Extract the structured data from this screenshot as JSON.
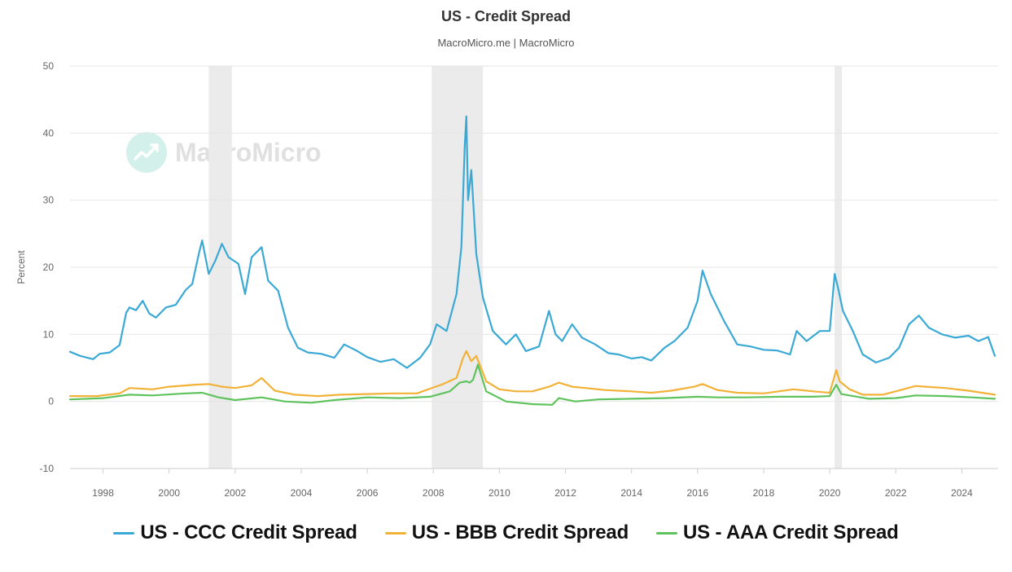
{
  "title": "US - Credit Spread",
  "subtitle": "MacroMicro.me | MacroMicro",
  "watermark": "MacroMicro",
  "colors": {
    "ccc": "#3aa9d5",
    "bbb": "#f2b137",
    "aaa": "#5ec35c",
    "recession": "#ebebeb",
    "grid": "#e6e6e6"
  },
  "chart_data": {
    "type": "line",
    "title": "US - Credit Spread",
    "subtitle": "MacroMicro.me | MacroMicro",
    "ylabel": "Percent",
    "ylim": [
      -10,
      50
    ],
    "xlim": [
      1997.0,
      2025.1
    ],
    "yticks": [
      -10,
      0,
      10,
      20,
      30,
      40,
      50
    ],
    "xticks": [
      1998,
      2000,
      2002,
      2004,
      2006,
      2008,
      2010,
      2012,
      2014,
      2016,
      2018,
      2020,
      2022,
      2024
    ],
    "grid": true,
    "legend_position": "bottom",
    "recessions": [
      [
        2001.2,
        2001.9
      ],
      [
        2007.95,
        2009.5
      ],
      [
        2020.15,
        2020.37
      ]
    ],
    "series": [
      {
        "name": "US - CCC Credit Spread",
        "x": [
          1997.0,
          1997.3,
          1997.7,
          1997.9,
          1998.2,
          1998.5,
          1998.7,
          1998.8,
          1999.0,
          1999.2,
          1999.4,
          1999.6,
          1999.9,
          2000.2,
          2000.5,
          2000.7,
          2000.9,
          2001.0,
          2001.2,
          2001.4,
          2001.6,
          2001.8,
          2002.1,
          2002.3,
          2002.5,
          2002.8,
          2003.0,
          2003.3,
          2003.6,
          2003.9,
          2004.2,
          2004.6,
          2005.0,
          2005.3,
          2005.7,
          2006.0,
          2006.4,
          2006.8,
          2007.2,
          2007.6,
          2007.9,
          2008.1,
          2008.4,
          2008.7,
          2008.85,
          2008.95,
          2009.0,
          2009.05,
          2009.15,
          2009.3,
          2009.5,
          2009.8,
          2010.2,
          2010.5,
          2010.8,
          2011.2,
          2011.5,
          2011.7,
          2011.9,
          2012.2,
          2012.5,
          2012.9,
          2013.3,
          2013.6,
          2014.0,
          2014.3,
          2014.6,
          2015.0,
          2015.3,
          2015.7,
          2016.0,
          2016.15,
          2016.4,
          2016.8,
          2017.2,
          2017.6,
          2018.0,
          2018.4,
          2018.8,
          2019.0,
          2019.3,
          2019.7,
          2020.0,
          2020.15,
          2020.25,
          2020.4,
          2020.7,
          2021.0,
          2021.4,
          2021.8,
          2022.1,
          2022.4,
          2022.7,
          2023.0,
          2023.4,
          2023.8,
          2024.2,
          2024.5,
          2024.8,
          2025.0
        ],
        "values": [
          7.4,
          6.8,
          6.3,
          7.1,
          7.3,
          8.4,
          13.2,
          14.0,
          13.6,
          15.0,
          13.1,
          12.5,
          14.0,
          14.4,
          16.6,
          17.5,
          22.0,
          24.0,
          19.0,
          21.0,
          23.5,
          21.5,
          20.5,
          16.0,
          21.5,
          23.0,
          18.0,
          16.5,
          11.0,
          8.0,
          7.3,
          7.1,
          6.5,
          8.5,
          7.5,
          6.6,
          5.9,
          6.3,
          5.0,
          6.5,
          8.5,
          11.5,
          10.5,
          16.0,
          23.0,
          38.0,
          42.5,
          30.0,
          34.5,
          22.0,
          15.5,
          10.5,
          8.5,
          10.0,
          7.5,
          8.2,
          13.5,
          10.0,
          9.0,
          11.5,
          9.5,
          8.5,
          7.2,
          7.0,
          6.4,
          6.6,
          6.1,
          8.0,
          9.0,
          11.0,
          15.0,
          19.5,
          16.0,
          12.0,
          8.5,
          8.2,
          7.7,
          7.6,
          7.0,
          10.5,
          9.0,
          10.5,
          10.5,
          19.0,
          17.0,
          13.5,
          10.5,
          7.0,
          5.8,
          6.5,
          8.0,
          11.5,
          12.8,
          11.0,
          10.0,
          9.5,
          9.8,
          9.0,
          9.6,
          6.8
        ]
      },
      {
        "name": "US - BBB Credit Spread",
        "x": [
          1997.0,
          1997.8,
          1998.5,
          1998.8,
          1999.5,
          2000.0,
          2000.8,
          2001.2,
          2001.6,
          2002.0,
          2002.5,
          2002.8,
          2003.2,
          2003.8,
          2004.5,
          2005.2,
          2006.0,
          2006.8,
          2007.5,
          2007.9,
          2008.3,
          2008.7,
          2008.9,
          2009.0,
          2009.15,
          2009.3,
          2009.6,
          2010.0,
          2010.5,
          2011.0,
          2011.5,
          2011.8,
          2012.2,
          2012.6,
          2013.2,
          2014.0,
          2014.6,
          2015.2,
          2015.9,
          2016.15,
          2016.6,
          2017.2,
          2018.0,
          2018.9,
          2019.5,
          2020.0,
          2020.2,
          2020.3,
          2020.6,
          2021.0,
          2021.6,
          2022.0,
          2022.6,
          2022.9,
          2023.5,
          2024.2,
          2025.0
        ],
        "values": [
          0.8,
          0.8,
          1.2,
          2.0,
          1.8,
          2.2,
          2.5,
          2.6,
          2.2,
          2.0,
          2.4,
          3.5,
          1.6,
          1.0,
          0.8,
          1.0,
          1.1,
          1.2,
          1.2,
          1.9,
          2.6,
          3.5,
          6.5,
          7.5,
          6.0,
          6.8,
          3.0,
          1.8,
          1.5,
          1.5,
          2.2,
          2.8,
          2.2,
          2.0,
          1.7,
          1.5,
          1.3,
          1.6,
          2.2,
          2.6,
          1.7,
          1.3,
          1.2,
          1.8,
          1.5,
          1.3,
          4.7,
          3.0,
          1.8,
          1.0,
          1.0,
          1.5,
          2.3,
          2.2,
          2.0,
          1.6,
          1.0
        ]
      },
      {
        "name": "US - AAA Credit Spread",
        "x": [
          1997.0,
          1998.0,
          1998.8,
          1999.5,
          2000.5,
          2001.0,
          2001.5,
          2002.0,
          2002.8,
          2003.5,
          2004.3,
          2005.0,
          2006.0,
          2007.0,
          2007.9,
          2008.5,
          2008.8,
          2009.0,
          2009.1,
          2009.2,
          2009.35,
          2009.6,
          2010.2,
          2011.0,
          2011.6,
          2011.8,
          2012.3,
          2013.0,
          2014.0,
          2015.0,
          2016.0,
          2016.6,
          2017.5,
          2018.5,
          2019.5,
          2020.0,
          2020.2,
          2020.35,
          2020.7,
          2021.2,
          2022.0,
          2022.6,
          2023.5,
          2024.3,
          2025.0
        ],
        "values": [
          0.3,
          0.5,
          1.0,
          0.9,
          1.2,
          1.3,
          0.6,
          0.2,
          0.6,
          0.0,
          -0.2,
          0.2,
          0.6,
          0.5,
          0.7,
          1.5,
          2.8,
          3.0,
          2.8,
          3.2,
          5.5,
          1.5,
          0.0,
          -0.4,
          -0.5,
          0.5,
          0.0,
          0.3,
          0.4,
          0.5,
          0.7,
          0.6,
          0.6,
          0.7,
          0.7,
          0.8,
          2.5,
          1.1,
          0.8,
          0.4,
          0.5,
          0.9,
          0.8,
          0.6,
          0.4
        ]
      }
    ]
  }
}
